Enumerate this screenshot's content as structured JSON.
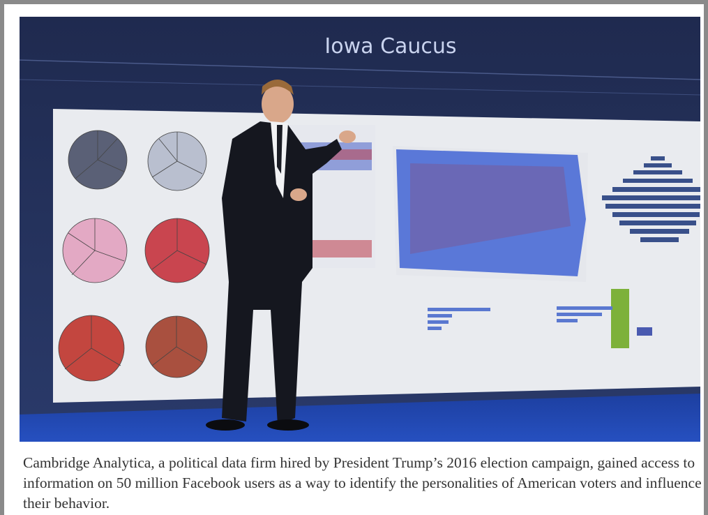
{
  "photo": {
    "screen_title": "Iowa Caucus"
  },
  "caption": "Cambridge Analytica, a political data firm hired by President Trump’s 2016 election campaign, gained access to information on 50 million Facebook users as a way to identify the personalities of American voters and influence their behavior."
}
